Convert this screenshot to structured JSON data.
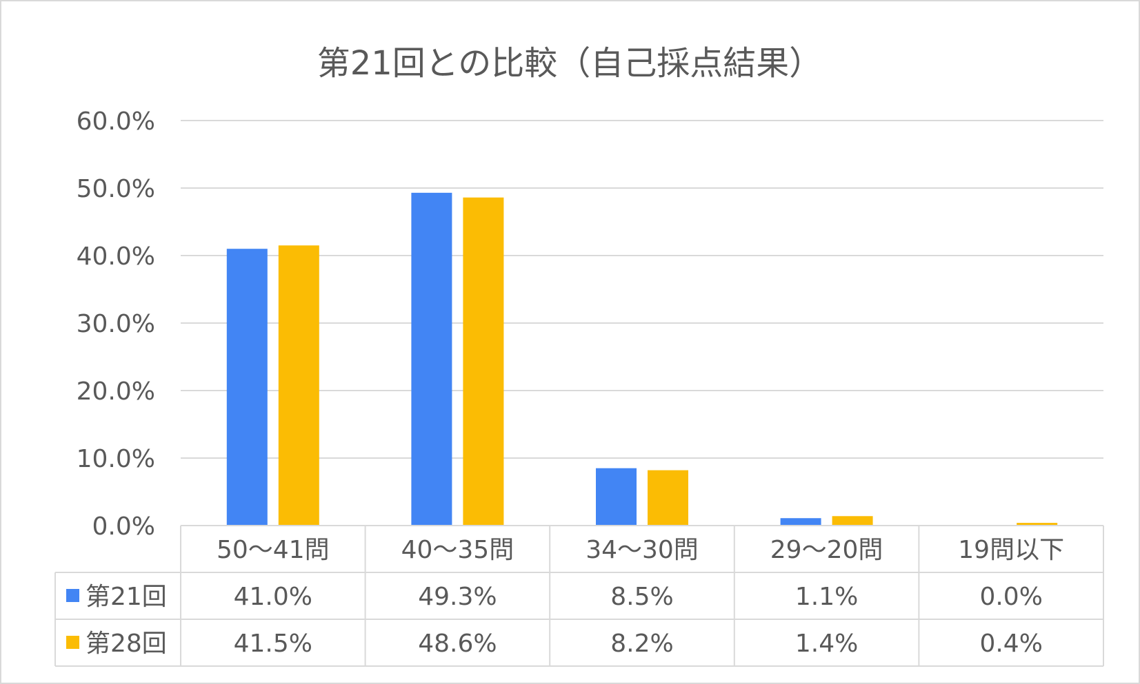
{
  "chart_data": {
    "type": "bar",
    "title": "第21回との比較（自己採点結果）",
    "categories": [
      "50～41問",
      "40～35問",
      "34～30問",
      "29～20問",
      "19問以下"
    ],
    "series": [
      {
        "name": "第21回",
        "color": "#4285f4",
        "values": [
          41.0,
          49.3,
          8.5,
          1.1,
          0.0
        ],
        "labels": [
          "41.0%",
          "49.3%",
          "8.5%",
          "1.1%",
          "0.0%"
        ]
      },
      {
        "name": "第28回",
        "color": "#fbbc04",
        "values": [
          41.5,
          48.6,
          8.2,
          1.4,
          0.4
        ],
        "labels": [
          "41.5%",
          "48.6%",
          "8.2%",
          "1.4%",
          "0.4%"
        ]
      }
    ],
    "y_ticks": [
      "0.0%",
      "10.0%",
      "20.0%",
      "30.0%",
      "40.0%",
      "50.0%",
      "60.0%"
    ],
    "ylim": [
      0,
      60
    ],
    "grid": true,
    "legend": "data-table",
    "data_table": true,
    "colors": {
      "text": "#595959",
      "grid": "#d9d9d9",
      "border": "#d9d9d9"
    }
  }
}
